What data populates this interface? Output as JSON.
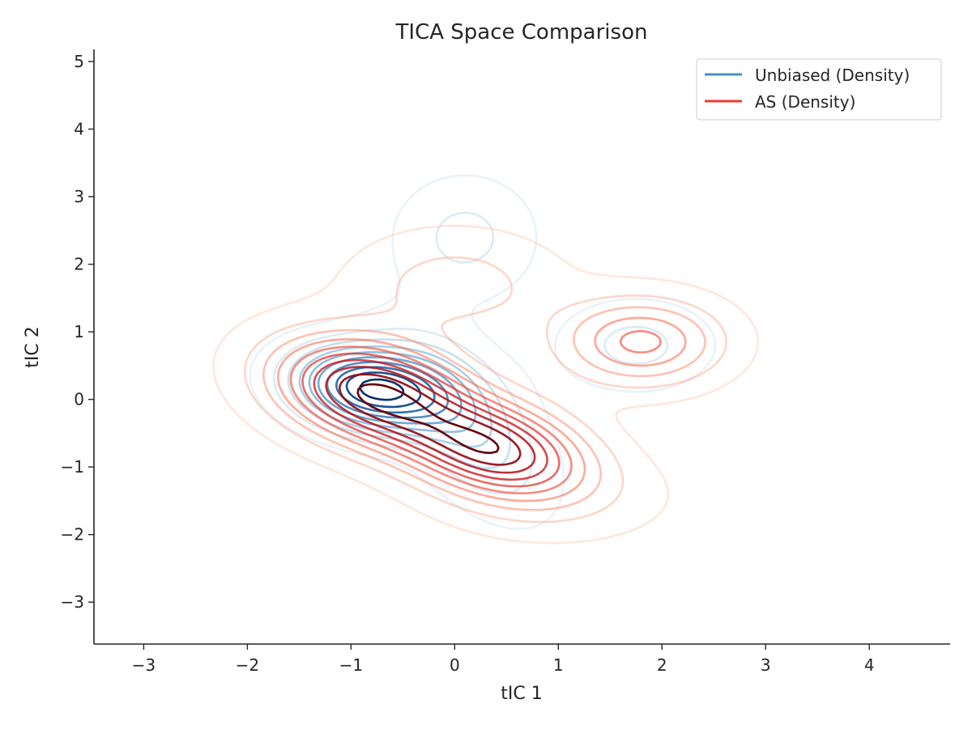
{
  "chart_data": {
    "type": "contour",
    "title": "TICA Space Comparison",
    "xlabel": "tIC 1",
    "ylabel": "tIC 2",
    "xlim": [
      -3.48,
      4.78
    ],
    "ylim": [
      -3.62,
      5.18
    ],
    "xticks": [
      -3,
      -2,
      -1,
      0,
      1,
      2,
      3,
      4
    ],
    "yticks": [
      -3,
      -2,
      -1,
      0,
      1,
      2,
      3,
      4,
      5
    ],
    "xtick_labels": [
      "−3",
      "−2",
      "−1",
      "0",
      "1",
      "2",
      "3",
      "4"
    ],
    "ytick_labels": [
      "−3",
      "−2",
      "−1",
      "0",
      "1",
      "2",
      "3",
      "4",
      "5"
    ],
    "grid": false,
    "legend_position": "top-right",
    "series": [
      {
        "name": "Unbiased (Density)",
        "kind": "kde_contour",
        "colormap": "Blues",
        "legend_color": "#4292c6",
        "levels": 10,
        "components": [
          {
            "weight": 0.45,
            "mean": [
              -0.8,
              0.15
            ],
            "sd": [
              0.5,
              0.42
            ],
            "rho": -0.2
          },
          {
            "weight": 0.3,
            "mean": [
              0.1,
              -0.3
            ],
            "sd": [
              0.5,
              0.85
            ],
            "rho": -0.55
          },
          {
            "weight": 0.12,
            "mean": [
              0.1,
              2.4
            ],
            "sd": [
              0.45,
              0.6
            ],
            "rho": 0.0
          },
          {
            "weight": 0.1,
            "mean": [
              1.75,
              0.8
            ],
            "sd": [
              0.5,
              0.45
            ],
            "rho": 0.0
          }
        ]
      },
      {
        "name": "AS (Density)",
        "kind": "kde_contour",
        "colormap": "Reds",
        "legend_color": "#ef3b2c",
        "levels": 10,
        "components": [
          {
            "weight": 0.4,
            "mean": [
              -0.8,
              0.1
            ],
            "sd": [
              0.65,
              0.55
            ],
            "rho": -0.3
          },
          {
            "weight": 0.3,
            "mean": [
              0.4,
              -0.75
            ],
            "sd": [
              0.6,
              0.5
            ],
            "rho": -0.3
          },
          {
            "weight": 0.15,
            "mean": [
              1.8,
              0.85
            ],
            "sd": [
              0.55,
              0.45
            ],
            "rho": 0.0
          },
          {
            "weight": 0.1,
            "mean": [
              0.0,
              1.7
            ],
            "sd": [
              0.7,
              0.55
            ],
            "rho": 0.0
          },
          {
            "weight": 0.05,
            "mean": [
              1.0,
              -1.5
            ],
            "sd": [
              0.9,
              0.5
            ],
            "rho": 0.0
          }
        ]
      }
    ]
  }
}
